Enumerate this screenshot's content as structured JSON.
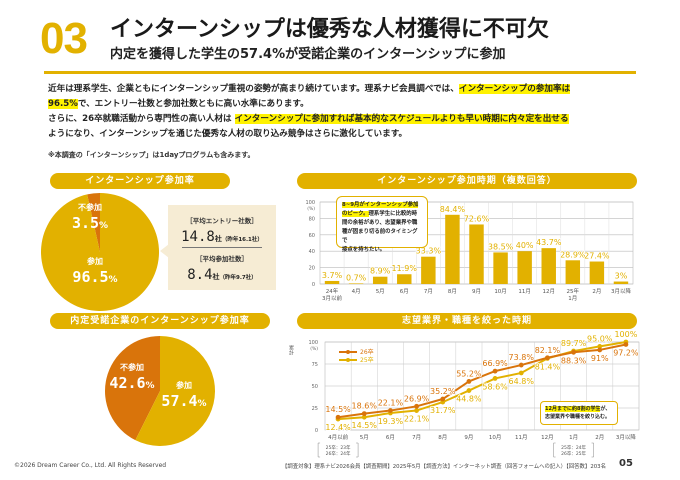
{
  "header": {
    "section_number": "03",
    "title": "インターンシップは優秀な人材獲得に不可欠",
    "subtitle": "内定を獲得した学生の57.4%が受諾企業のインターンシップに参加"
  },
  "body": {
    "p1_a": "近年は理系学生、企業ともにインターンシップ重視の姿勢が高まり続けています。理系ナビ会員調べでは、",
    "p1_hl": "インターンシップの参加率は",
    "p2_hl": "96.5%",
    "p2_b": "で、エントリー社数と参加社数ともに高い水準にあります。",
    "p3_a": "さらに、26卒就職活動から専門性の高い人材は ",
    "p3_hl": "インターンシップに参加すれば基本的なスケジュールよりも早い時期に内々定を出せる",
    "p4": "ようになり、インターンシップを通じた優秀な人材の取り込み競争はさらに激化しています。",
    "note": "※本調査の「インターンシップ」は1dayプログラムも含みます。"
  },
  "colors": {
    "accent": "#e2b100",
    "dark_orange": "#d9740b",
    "highlight": "#fff200",
    "avg_box": "#f6ecd4"
  },
  "panel_participation": {
    "title": "インターンシップ参加率",
    "avg_entry_title": "［平均エントリー社数］",
    "avg_entry_value": "14.8",
    "avg_entry_unit": "社",
    "avg_entry_prev": "（昨年16.1社）",
    "avg_join_title": "［平均参加社数］",
    "avg_join_value": "8.4",
    "avg_join_unit": "社",
    "avg_join_prev": "（昨年9.7社）"
  },
  "panel_timing": {
    "title": "インターンシップ参加時期（複数回答）",
    "callout_hl1": "8~9月がインターンシップ参加",
    "callout_hl2": "のピーク。",
    "callout_rest1": "理系学生に比較的時",
    "callout_rest2": "間の余裕があり、志望業界や職",
    "callout_rest3": "種が固まり切る前のタイミングで",
    "callout_rest4": "接点を持ちたい。"
  },
  "panel_accept": {
    "title": "内定受諾企業のインターンシップ参加率"
  },
  "panel_narrow": {
    "title": "志望業界・職種を絞った時期",
    "callout_hl": "12月までに約8割の学生",
    "callout_a": "が、",
    "callout_b": "志望業界や職種を絞り込む。",
    "bracket_left_1": "25卒：23年",
    "bracket_left_2": "26卒：24年",
    "bracket_right_1": "25卒：24年",
    "bracket_right_2": "26卒：25年"
  },
  "chart_data": [
    {
      "type": "pie",
      "title": "インターンシップ参加率",
      "slices": [
        {
          "label": "参加",
          "value": 96.5,
          "color": "#e2b100"
        },
        {
          "label": "不参加",
          "value": 3.5,
          "color": "#d9740b"
        }
      ],
      "unit": "%"
    },
    {
      "type": "bar",
      "title": "インターンシップ参加時期（複数回答）",
      "ylabel": "(%)",
      "ylim": [
        0,
        100
      ],
      "yticks": [
        0,
        20,
        40,
        60,
        80,
        100
      ],
      "grid": true,
      "categories": [
        "24年\n3月以前",
        "4月",
        "5月",
        "6月",
        "7月",
        "8月",
        "9月",
        "10月",
        "11月",
        "12月",
        "25年\n1月",
        "2月",
        "3月以降"
      ],
      "values": [
        3.7,
        0.7,
        8.9,
        11.9,
        33.3,
        84.4,
        72.6,
        38.5,
        40,
        43.7,
        28.9,
        27.4,
        3
      ],
      "labels": [
        "3.7%",
        "0.7%",
        "8.9%",
        "11.9%",
        "33.3%",
        "84.4%",
        "72.6%",
        "38.5%",
        "40%",
        "43.7%",
        "28.9%",
        "27.4%",
        "3%"
      ]
    },
    {
      "type": "pie",
      "title": "内定受諾企業のインターンシップ参加率",
      "slices": [
        {
          "label": "参加",
          "value": 57.4,
          "color": "#e2b100"
        },
        {
          "label": "不参加",
          "value": 42.6,
          "color": "#d9740b"
        }
      ],
      "unit": "%"
    },
    {
      "type": "line",
      "title": "志望業界・職種を絞った時期",
      "ylabel": "累計 (%)",
      "ylim": [
        0,
        100
      ],
      "yticks": [
        0,
        25,
        50,
        75,
        100
      ],
      "grid": true,
      "legend": "top-left",
      "categories": [
        "4月以前",
        "5月",
        "6月",
        "7月",
        "8月",
        "9月",
        "10月",
        "11月",
        "12月",
        "1月",
        "2月",
        "3月以降"
      ],
      "series": [
        {
          "name": "26卒",
          "color": "#d9740b",
          "values": [
            14.5,
            18.6,
            22.1,
            26.9,
            35.2,
            55.2,
            66.9,
            73.8,
            82.1,
            88.3,
            91,
            97.2
          ],
          "labels": [
            "14.5%",
            "18.6%",
            "22.1%",
            "26.9%",
            "35.2%",
            "55.2%",
            "66.9%",
            "73.8%",
            "82.1%",
            "88.3%",
            "91%",
            "97.2%"
          ]
        },
        {
          "name": "25卒",
          "color": "#e2b100",
          "values": [
            12.4,
            14.5,
            19.3,
            22.1,
            31.7,
            44.8,
            58.6,
            64.8,
            81.4,
            89.7,
            95.0,
            100
          ],
          "labels": [
            "12.4%",
            "14.5%",
            "19.3%",
            "22.1%",
            "31.7%",
            "44.8%",
            "58.6%",
            "64.8%",
            "81.4%",
            "89.7%",
            "95.0%",
            "100%"
          ]
        }
      ]
    }
  ],
  "footer": {
    "copyright": "©2026 Dream Career Co., Ltd. All Rights Reserved",
    "survey": "【調査対象】理系ナビ2026会員【調査期間】2025年5月【調査方法】インターネット調査（回答フォームへの記入）【回答数】203名",
    "page": "05"
  }
}
